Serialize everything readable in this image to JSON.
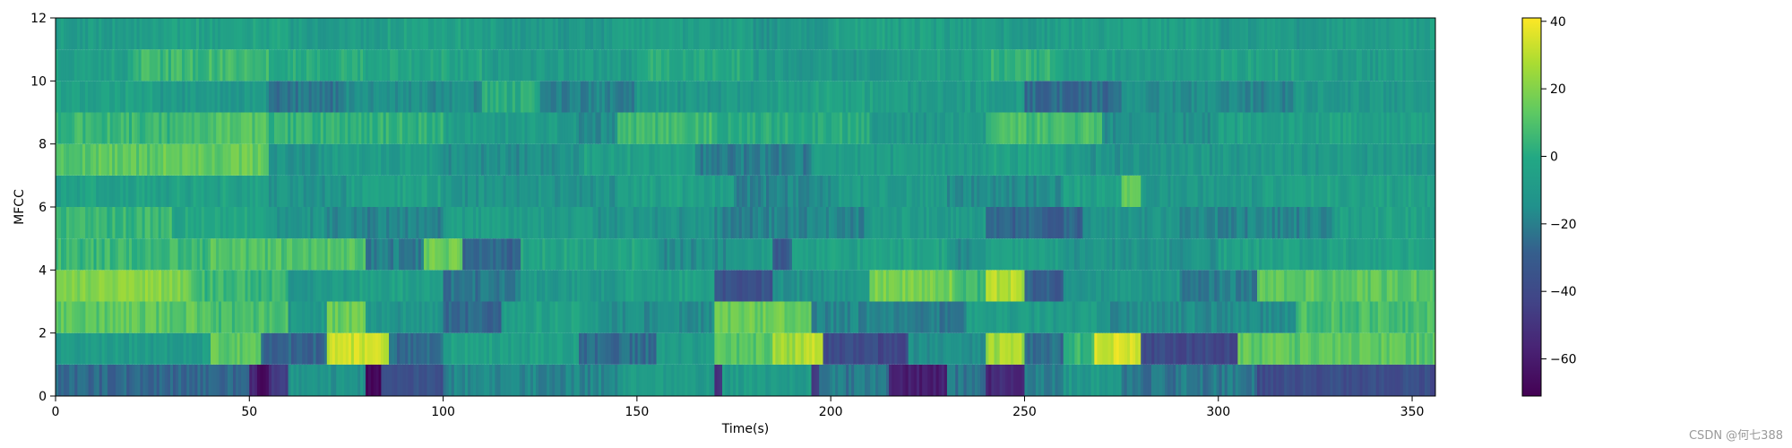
{
  "chart_data": {
    "type": "heatmap",
    "title": "",
    "xlabel": "Time(s)",
    "ylabel": "MFCC",
    "xlim": [
      0,
      356
    ],
    "ylim": [
      0,
      12
    ],
    "x_ticks": [
      0,
      50,
      100,
      150,
      200,
      250,
      300,
      350
    ],
    "y_ticks": [
      0,
      2,
      4,
      6,
      8,
      10,
      12
    ],
    "colormap": "viridis",
    "colorbar": {
      "min": -71,
      "max": 41,
      "ticks": [
        40,
        20,
        0,
        -20,
        -40,
        -60
      ],
      "tick_labels": [
        "40",
        "20",
        "0",
        "−20",
        "−40",
        "−60"
      ]
    },
    "rows": 12,
    "segments": [
      [
        [
          0,
          50,
          -27
        ],
        [
          50,
          52,
          -55
        ],
        [
          52,
          55,
          -68
        ],
        [
          55,
          60,
          -48
        ],
        [
          60,
          80,
          -12
        ],
        [
          80,
          84,
          -70
        ],
        [
          84,
          100,
          -35
        ],
        [
          100,
          145,
          -18
        ],
        [
          145,
          170,
          -8
        ],
        [
          170,
          172,
          -50
        ],
        [
          172,
          195,
          -8
        ],
        [
          195,
          197,
          -45
        ],
        [
          197,
          215,
          -22
        ],
        [
          215,
          230,
          -58
        ],
        [
          230,
          240,
          -22
        ],
        [
          240,
          250,
          -55
        ],
        [
          250,
          260,
          -22
        ],
        [
          260,
          275,
          -10
        ],
        [
          275,
          310,
          -22
        ],
        [
          310,
          356,
          -38
        ]
      ],
      [
        [
          0,
          40,
          -8
        ],
        [
          40,
          53,
          12
        ],
        [
          53,
          70,
          -28
        ],
        [
          70,
          86,
          32
        ],
        [
          86,
          100,
          -25
        ],
        [
          100,
          135,
          -5
        ],
        [
          135,
          155,
          -25
        ],
        [
          155,
          170,
          -8
        ],
        [
          170,
          185,
          12
        ],
        [
          185,
          193,
          25
        ],
        [
          193,
          198,
          30
        ],
        [
          198,
          220,
          -40
        ],
        [
          220,
          240,
          -15
        ],
        [
          240,
          250,
          26
        ],
        [
          250,
          260,
          -25
        ],
        [
          260,
          268,
          5
        ],
        [
          268,
          280,
          35
        ],
        [
          280,
          305,
          -40
        ],
        [
          305,
          356,
          12
        ]
      ],
      [
        [
          0,
          40,
          12
        ],
        [
          40,
          60,
          8
        ],
        [
          60,
          70,
          -10
        ],
        [
          70,
          80,
          14
        ],
        [
          80,
          100,
          -12
        ],
        [
          100,
          115,
          -28
        ],
        [
          115,
          140,
          -5
        ],
        [
          140,
          170,
          -15
        ],
        [
          170,
          195,
          15
        ],
        [
          195,
          210,
          -18
        ],
        [
          210,
          235,
          -22
        ],
        [
          235,
          270,
          -8
        ],
        [
          270,
          320,
          -15
        ],
        [
          320,
          356,
          8
        ]
      ],
      [
        [
          0,
          35,
          20
        ],
        [
          35,
          60,
          5
        ],
        [
          60,
          75,
          -10
        ],
        [
          75,
          100,
          -5
        ],
        [
          100,
          120,
          -22
        ],
        [
          120,
          145,
          -10
        ],
        [
          145,
          170,
          -5
        ],
        [
          170,
          185,
          -35
        ],
        [
          185,
          210,
          -12
        ],
        [
          210,
          232,
          18
        ],
        [
          232,
          240,
          5
        ],
        [
          240,
          250,
          28
        ],
        [
          250,
          260,
          -30
        ],
        [
          260,
          290,
          -10
        ],
        [
          290,
          310,
          -20
        ],
        [
          310,
          356,
          12
        ]
      ],
      [
        [
          0,
          40,
          5
        ],
        [
          40,
          80,
          10
        ],
        [
          80,
          95,
          -20
        ],
        [
          95,
          105,
          15
        ],
        [
          105,
          120,
          -28
        ],
        [
          120,
          155,
          -3
        ],
        [
          155,
          175,
          -15
        ],
        [
          175,
          185,
          -8
        ],
        [
          185,
          190,
          -30
        ],
        [
          190,
          230,
          -5
        ],
        [
          230,
          240,
          -15
        ],
        [
          240,
          260,
          -5
        ],
        [
          260,
          300,
          -12
        ],
        [
          300,
          356,
          -5
        ]
      ],
      [
        [
          0,
          30,
          5
        ],
        [
          30,
          55,
          -3
        ],
        [
          55,
          70,
          -12
        ],
        [
          70,
          100,
          -18
        ],
        [
          100,
          140,
          -8
        ],
        [
          140,
          170,
          -12
        ],
        [
          170,
          210,
          -18
        ],
        [
          210,
          240,
          -8
        ],
        [
          240,
          265,
          -28
        ],
        [
          265,
          290,
          -12
        ],
        [
          290,
          330,
          -18
        ],
        [
          330,
          356,
          -5
        ]
      ],
      [
        [
          0,
          55,
          -5
        ],
        [
          55,
          75,
          -12
        ],
        [
          75,
          100,
          -5
        ],
        [
          100,
          145,
          -12
        ],
        [
          145,
          175,
          -5
        ],
        [
          175,
          200,
          -18
        ],
        [
          200,
          230,
          -8
        ],
        [
          230,
          260,
          -15
        ],
        [
          260,
          275,
          -5
        ],
        [
          275,
          280,
          15
        ],
        [
          280,
          310,
          -10
        ],
        [
          310,
          356,
          -5
        ]
      ],
      [
        [
          0,
          25,
          12
        ],
        [
          25,
          55,
          14
        ],
        [
          55,
          70,
          -12
        ],
        [
          70,
          100,
          -8
        ],
        [
          100,
          135,
          -15
        ],
        [
          135,
          165,
          -5
        ],
        [
          165,
          195,
          -20
        ],
        [
          195,
          240,
          -8
        ],
        [
          240,
          260,
          -5
        ],
        [
          260,
          290,
          -12
        ],
        [
          290,
          356,
          -10
        ]
      ],
      [
        [
          0,
          40,
          5
        ],
        [
          40,
          55,
          10
        ],
        [
          55,
          100,
          3
        ],
        [
          100,
          135,
          -8
        ],
        [
          135,
          145,
          -15
        ],
        [
          145,
          170,
          6
        ],
        [
          170,
          210,
          0
        ],
        [
          210,
          240,
          -10
        ],
        [
          240,
          270,
          8
        ],
        [
          270,
          300,
          -14
        ],
        [
          300,
          356,
          -5
        ]
      ],
      [
        [
          0,
          25,
          -5
        ],
        [
          25,
          55,
          -10
        ],
        [
          55,
          75,
          -22
        ],
        [
          75,
          110,
          -15
        ],
        [
          110,
          125,
          0
        ],
        [
          125,
          150,
          -18
        ],
        [
          150,
          185,
          -10
        ],
        [
          185,
          215,
          -5
        ],
        [
          215,
          250,
          -8
        ],
        [
          250,
          275,
          -25
        ],
        [
          275,
          300,
          -15
        ],
        [
          300,
          320,
          -18
        ],
        [
          320,
          356,
          -10
        ]
      ],
      [
        [
          0,
          20,
          -5
        ],
        [
          20,
          55,
          6
        ],
        [
          55,
          80,
          0
        ],
        [
          80,
          110,
          -3
        ],
        [
          110,
          150,
          -8
        ],
        [
          150,
          180,
          0
        ],
        [
          180,
          215,
          -10
        ],
        [
          215,
          240,
          -5
        ],
        [
          240,
          260,
          3
        ],
        [
          260,
          300,
          -6
        ],
        [
          300,
          330,
          -4
        ],
        [
          330,
          356,
          -8
        ]
      ],
      [
        [
          0,
          30,
          -8
        ],
        [
          30,
          60,
          -4
        ],
        [
          60,
          85,
          -8
        ],
        [
          85,
          115,
          -5
        ],
        [
          115,
          145,
          -10
        ],
        [
          145,
          180,
          -6
        ],
        [
          180,
          200,
          -12
        ],
        [
          200,
          230,
          -5
        ],
        [
          230,
          260,
          -8
        ],
        [
          260,
          300,
          -6
        ],
        [
          300,
          330,
          -10
        ],
        [
          330,
          356,
          -7
        ]
      ]
    ]
  },
  "watermark": "CSDN @何七388"
}
